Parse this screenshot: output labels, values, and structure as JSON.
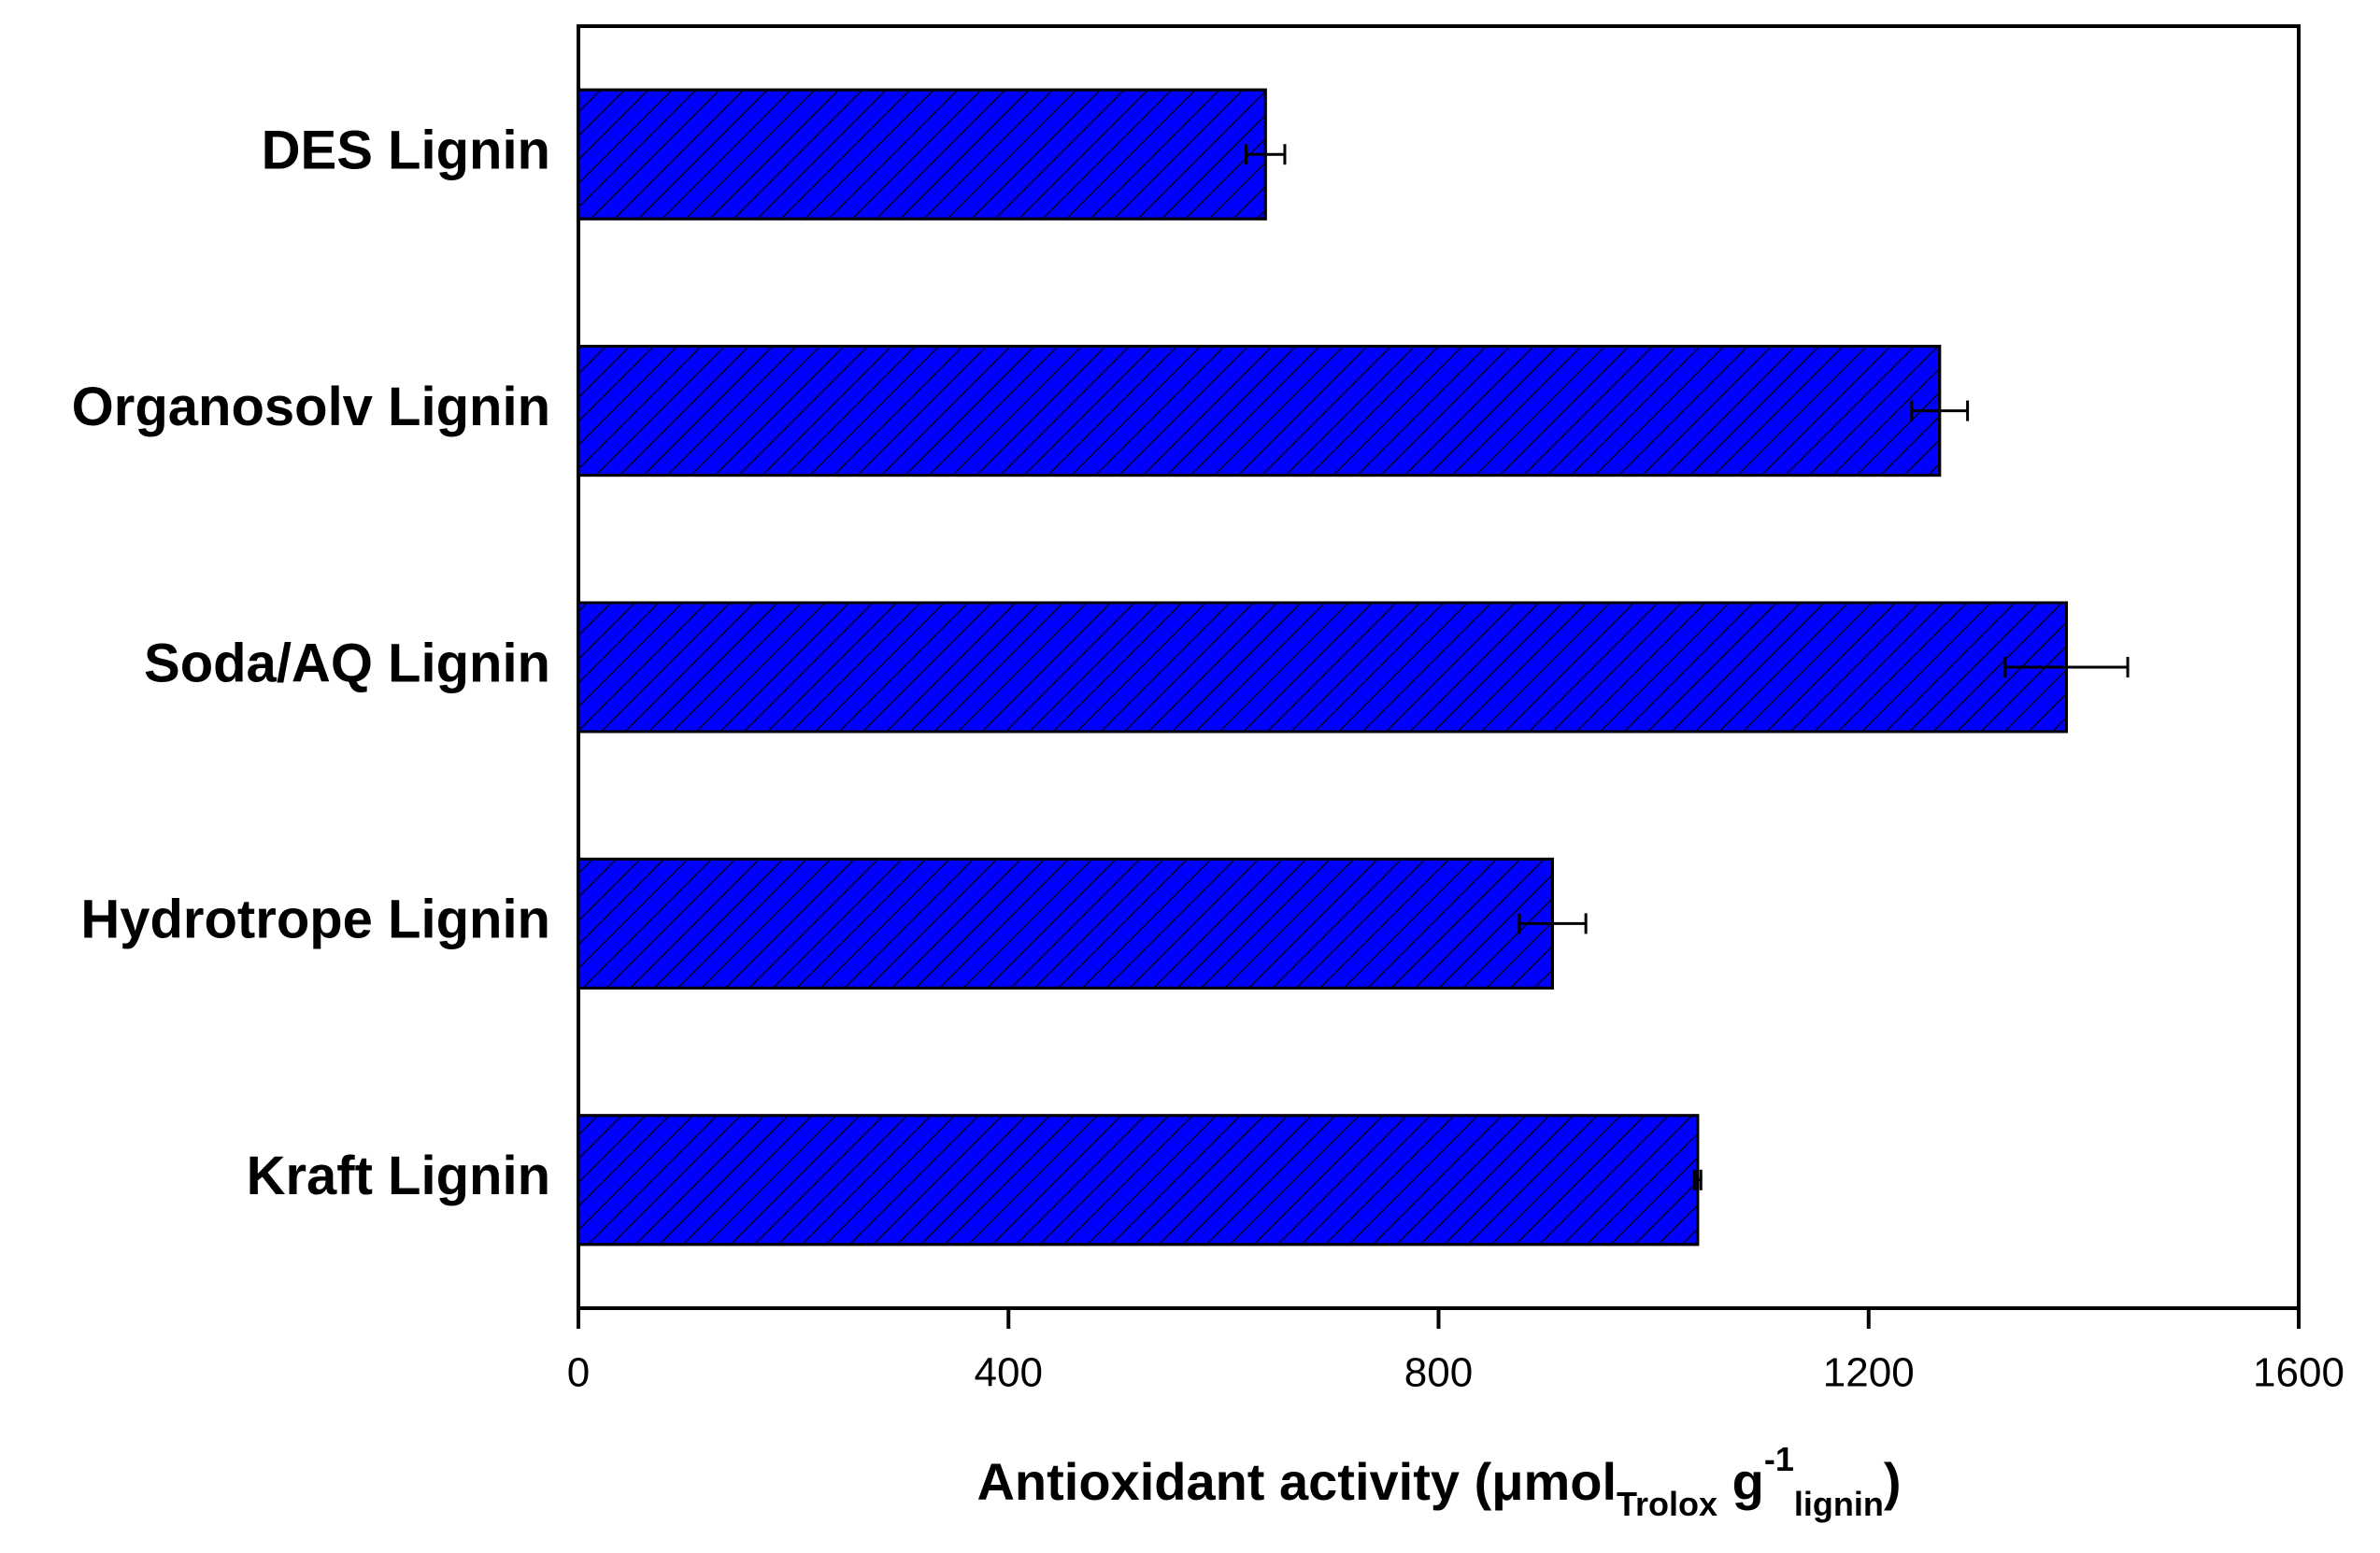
{
  "chart_data": {
    "type": "barh",
    "categories": [
      "DES Lignin",
      "Organosolv Lignin",
      "Soda/AQ Lignin",
      "Hydrotrope Lignin",
      "Kraft Lignin"
    ],
    "values": [
      639,
      1266,
      1384,
      906,
      1041
    ],
    "errors": [
      18,
      26,
      57,
      31,
      3
    ],
    "color": "#0000ff",
    "hatch": true,
    "xlim": [
      0,
      1600
    ],
    "xticks": [
      0,
      400,
      800,
      1200,
      1600
    ],
    "xlabel_parts": [
      "Antioxidant activity (μmol",
      "Trolox",
      " g",
      "-1",
      "lignin",
      ")"
    ]
  }
}
